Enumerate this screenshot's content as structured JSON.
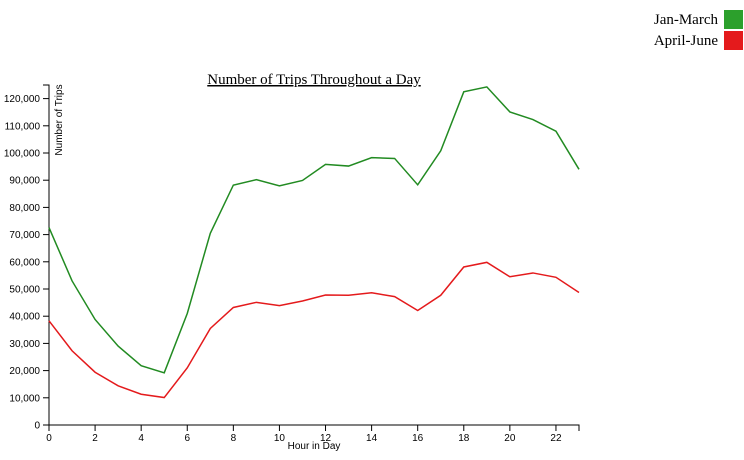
{
  "chart_data": {
    "type": "line",
    "title": "Number of Trips Throughout a Day",
    "xlabel": "Hour in Day",
    "ylabel": "Number of Trips",
    "x": [
      0,
      1,
      2,
      3,
      4,
      5,
      6,
      7,
      8,
      9,
      10,
      11,
      12,
      13,
      14,
      15,
      16,
      17,
      18,
      19,
      20,
      21,
      22,
      23
    ],
    "xlim": [
      0,
      23
    ],
    "ylim": [
      0,
      125000
    ],
    "x_ticks": [
      0,
      2,
      4,
      6,
      8,
      10,
      12,
      14,
      16,
      18,
      20,
      22
    ],
    "x_tick_labels": [
      "0",
      "2",
      "4",
      "6",
      "8",
      "10",
      "12",
      "14",
      "16",
      "18",
      "20",
      "22"
    ],
    "y_ticks": [
      0,
      10000,
      20000,
      30000,
      40000,
      50000,
      60000,
      70000,
      80000,
      90000,
      100000,
      110000,
      120000
    ],
    "y_tick_labels": [
      "0",
      "10,000",
      "20,000",
      "30,000",
      "40,000",
      "50,000",
      "60,000",
      "70,000",
      "80,000",
      "90,000",
      "100,000",
      "110,000",
      "120,000"
    ],
    "grid": false,
    "legend_position": "top-right",
    "series": [
      {
        "name": "Jan-March",
        "color": "#228B22",
        "legend_color": "#2ca02c",
        "values": [
          72600,
          53000,
          38800,
          29000,
          21800,
          19200,
          41000,
          70500,
          88200,
          90200,
          87900,
          89900,
          95800,
          95200,
          98300,
          98000,
          88300,
          100800,
          122500,
          124300,
          115100,
          112300,
          108000,
          94000
        ]
      },
      {
        "name": "April-June",
        "color": "#e41a1c",
        "legend_color": "#e41a1c",
        "values": [
          38300,
          27300,
          19400,
          14400,
          11300,
          10100,
          21000,
          35500,
          43200,
          45100,
          43900,
          45600,
          47800,
          47700,
          48600,
          47200,
          42100,
          47700,
          58100,
          59800,
          54500,
          55900,
          54300,
          48700
        ]
      }
    ]
  }
}
